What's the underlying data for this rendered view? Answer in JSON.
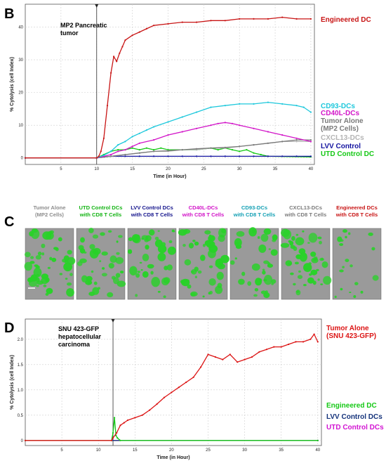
{
  "panel_labels": {
    "b": "B",
    "c": "C",
    "d": "D"
  },
  "chart_data": [
    {
      "type": "line",
      "panel": "B",
      "annotation": "MP2 Pancreatic\ntumor",
      "xlabel": "Time (in Hour)",
      "ylabel": "% Cytolysis (cell Index)",
      "xlim": [
        0,
        40.5
      ],
      "ylim": [
        -2,
        47
      ],
      "xticks": [
        5,
        10,
        15,
        20,
        25,
        30,
        35,
        40
      ],
      "yticks": [
        0,
        10,
        20,
        30,
        40
      ],
      "marker_x": 10,
      "grid": true,
      "series": [
        {
          "name": "Engineered DC",
          "color": "#c81414",
          "x": [
            0,
            10,
            10.3,
            10.6,
            11,
            11.5,
            12,
            12.4,
            12.8,
            13.2,
            13.6,
            14,
            15,
            16,
            17,
            18,
            20,
            22,
            24,
            26,
            28,
            30,
            32,
            34,
            36,
            38,
            40
          ],
          "y": [
            0,
            0,
            0.5,
            2,
            6,
            16,
            26,
            31,
            29.5,
            32,
            34,
            36,
            37.5,
            38.5,
            39.5,
            40.5,
            41,
            41.5,
            41.5,
            42,
            42,
            42.5,
            42.5,
            42.5,
            43,
            42.5,
            42.5
          ]
        },
        {
          "name": "CD93-DCs",
          "color": "#1ec8dc",
          "x": [
            0,
            10,
            11,
            12,
            13,
            14,
            15,
            16,
            17,
            18,
            20,
            22,
            24,
            26,
            28,
            30,
            32,
            34,
            36,
            38,
            39,
            40
          ],
          "y": [
            0,
            0,
            0.8,
            2,
            4,
            5,
            6.5,
            7.5,
            8.5,
            9.5,
            11,
            12.5,
            14,
            15.5,
            16,
            16.5,
            16.5,
            17,
            16.5,
            16,
            15.5,
            14
          ]
        },
        {
          "name": "CD40L-DCs",
          "color": "#d214c8",
          "x": [
            0,
            10,
            11,
            12,
            13,
            14,
            15,
            16,
            18,
            20,
            22,
            24,
            26,
            27,
            28,
            29,
            30,
            32,
            34,
            36,
            38,
            40
          ],
          "y": [
            0,
            0,
            0.5,
            1,
            2,
            2.5,
            3.5,
            4.5,
            5.5,
            7,
            8,
            9,
            10,
            10.5,
            10.8,
            10.5,
            10,
            9,
            8,
            7,
            6,
            5
          ]
        },
        {
          "name": "Tumor Alone\n(MP2 Cells)",
          "color": "#7a7a7a",
          "x": [
            0,
            10,
            12,
            14,
            16,
            18,
            20,
            22,
            24,
            26,
            28,
            30,
            32,
            34,
            36,
            38,
            40
          ],
          "y": [
            0,
            0,
            0.5,
            1,
            1.5,
            2,
            2.2,
            2.5,
            2.8,
            3,
            3.2,
            3.5,
            4,
            4.5,
            5,
            5.5,
            5.5
          ]
        },
        {
          "name": "CXCL13-DCs",
          "color": "#b4b4b4",
          "x": [
            0,
            10,
            12,
            14,
            16,
            18,
            20,
            22,
            24,
            26,
            28,
            30,
            32,
            34,
            36,
            38,
            40
          ],
          "y": [
            0,
            0,
            0.5,
            1,
            1.5,
            2,
            2,
            2.5,
            2.5,
            3,
            3,
            3.5,
            4,
            4.5,
            5,
            5,
            5
          ]
        },
        {
          "name": "LVV Control",
          "color": "#1414a0",
          "x": [
            0,
            10,
            11,
            12,
            14,
            16,
            18,
            20,
            22,
            24,
            26,
            28,
            30,
            32,
            34,
            36,
            38,
            40
          ],
          "y": [
            0,
            0,
            0.3,
            0.5,
            0.5,
            0.5,
            0.5,
            0.5,
            0.5,
            0.5,
            0.5,
            0.5,
            0.5,
            0.5,
            0.5,
            0.5,
            0.5,
            0.5
          ]
        },
        {
          "name": "UTD Control DC",
          "color": "#14c814",
          "x": [
            0,
            10,
            11,
            12,
            13,
            14,
            15,
            16,
            17,
            18,
            19,
            20,
            22,
            24,
            26,
            27,
            28,
            29,
            30,
            31,
            32,
            33,
            34,
            40
          ],
          "y": [
            0,
            0,
            1,
            2,
            2.5,
            2.5,
            3,
            2.5,
            3,
            2.5,
            3,
            2.5,
            2.5,
            2.5,
            3,
            2.5,
            3,
            2.5,
            2,
            2.5,
            1.5,
            1,
            0.5,
            0.3
          ]
        }
      ]
    },
    {
      "type": "line",
      "panel": "D",
      "annotation": "SNU 423-GFP\nhepatocellular\ncarcinoma",
      "xlabel": "Time (in Hour)",
      "ylabel": "% Cytolysis (cell Index)",
      "xlim": [
        0,
        40.5
      ],
      "ylim": [
        -0.1,
        2.4
      ],
      "xticks": [
        5,
        10,
        15,
        20,
        25,
        30,
        35,
        40
      ],
      "yticks": [
        0,
        0.5,
        1.0,
        1.5,
        2.0
      ],
      "ytick_labels": [
        "0",
        "0.5",
        "1.0",
        "1.5",
        "2.0"
      ],
      "marker_x": 12,
      "grid": true,
      "series": [
        {
          "name": "Tumor Alone\n(SNU 423-GFP)",
          "color": "#dc1414",
          "x": [
            0,
            11.8,
            12,
            12.5,
            13,
            13.5,
            14,
            15,
            16,
            17,
            18,
            19,
            20,
            21,
            22,
            23,
            24,
            25,
            26,
            27,
            28,
            29,
            30,
            31,
            32,
            33,
            34,
            35,
            36,
            37,
            38,
            39,
            39.5,
            40
          ],
          "y": [
            0,
            0,
            0.05,
            0.15,
            0.3,
            0.35,
            0.4,
            0.45,
            0.5,
            0.6,
            0.72,
            0.85,
            0.95,
            1.05,
            1.15,
            1.25,
            1.45,
            1.7,
            1.65,
            1.6,
            1.7,
            1.55,
            1.6,
            1.65,
            1.75,
            1.8,
            1.85,
            1.85,
            1.9,
            1.95,
            1.95,
            2.0,
            2.1,
            1.95
          ]
        },
        {
          "name": "Engineered DC",
          "color": "#14c814",
          "x": [
            0,
            11.8,
            12,
            12.2,
            12.4,
            12.6,
            13,
            40
          ],
          "y": [
            0,
            0,
            0.15,
            0.45,
            0.1,
            0.05,
            0,
            0
          ]
        },
        {
          "name": "LVV Control DCs",
          "color": "#14327a",
          "x": [
            0,
            40
          ],
          "y": [
            0,
            0
          ]
        },
        {
          "name": "UTD Control DCs",
          "color": "#d214d2",
          "x": [
            0,
            40
          ],
          "y": [
            0,
            0
          ]
        }
      ]
    }
  ],
  "panel_c": {
    "columns": [
      {
        "label": "Tumor Alone\n(MP2 Cells)",
        "color": "#8c8c8c"
      },
      {
        "label": "UTD Control DCs\nwith CD8 T Cells",
        "color": "#14b414"
      },
      {
        "label": "LVV Control DCs\nwith CD8 T Cells",
        "color": "#14148c"
      },
      {
        "label": "CD40L-DCs\nwith CD8 T Cells",
        "color": "#d214c8"
      },
      {
        "label": "CD93-DCs\nwith CD8 T Cells",
        "color": "#14a0b4"
      },
      {
        "label": "CXCL13-DCs\nwith CD8 T Cells",
        "color": "#7a7a7a"
      },
      {
        "label": "Engineered  DCs\nwith CD8 T Cells",
        "color": "#c81414"
      }
    ],
    "image_colors": {
      "background": "#9a9a9a",
      "cells": "#28d228"
    }
  }
}
